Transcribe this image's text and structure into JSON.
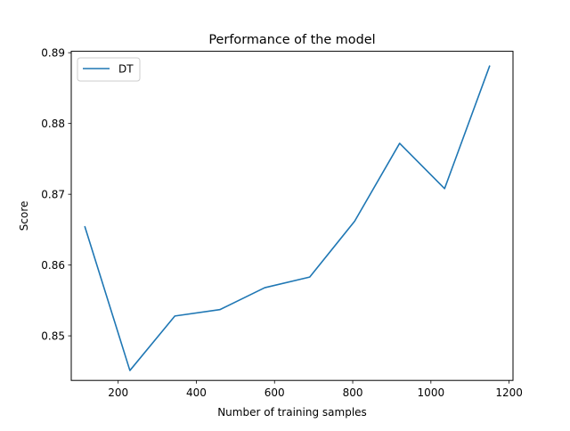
{
  "chart_data": {
    "type": "line",
    "title": "Performance of the model",
    "xlabel": "Number of training samples",
    "ylabel": "Score",
    "xlim": [
      80,
      1210
    ],
    "ylim": [
      0.8437,
      0.8902
    ],
    "xticks": [
      200,
      400,
      600,
      800,
      1000,
      1200
    ],
    "yticks": [
      0.85,
      0.86,
      0.87,
      0.88,
      0.89
    ],
    "xtick_labels": [
      "200",
      "400",
      "600",
      "800",
      "1000",
      "1200"
    ],
    "ytick_labels": [
      "0.85",
      "0.86",
      "0.87",
      "0.88",
      "0.89"
    ],
    "grid": false,
    "legend": {
      "position": "top-left",
      "entries": [
        "DT"
      ]
    },
    "series": [
      {
        "name": "DT",
        "color": "#1f77b4",
        "x": [
          115,
          230,
          345,
          460,
          575,
          690,
          805,
          920,
          1035,
          1150
        ],
        "y": [
          0.8654,
          0.8451,
          0.8528,
          0.8537,
          0.8568,
          0.8583,
          0.8662,
          0.8772,
          0.8708,
          0.8881
        ]
      }
    ]
  }
}
